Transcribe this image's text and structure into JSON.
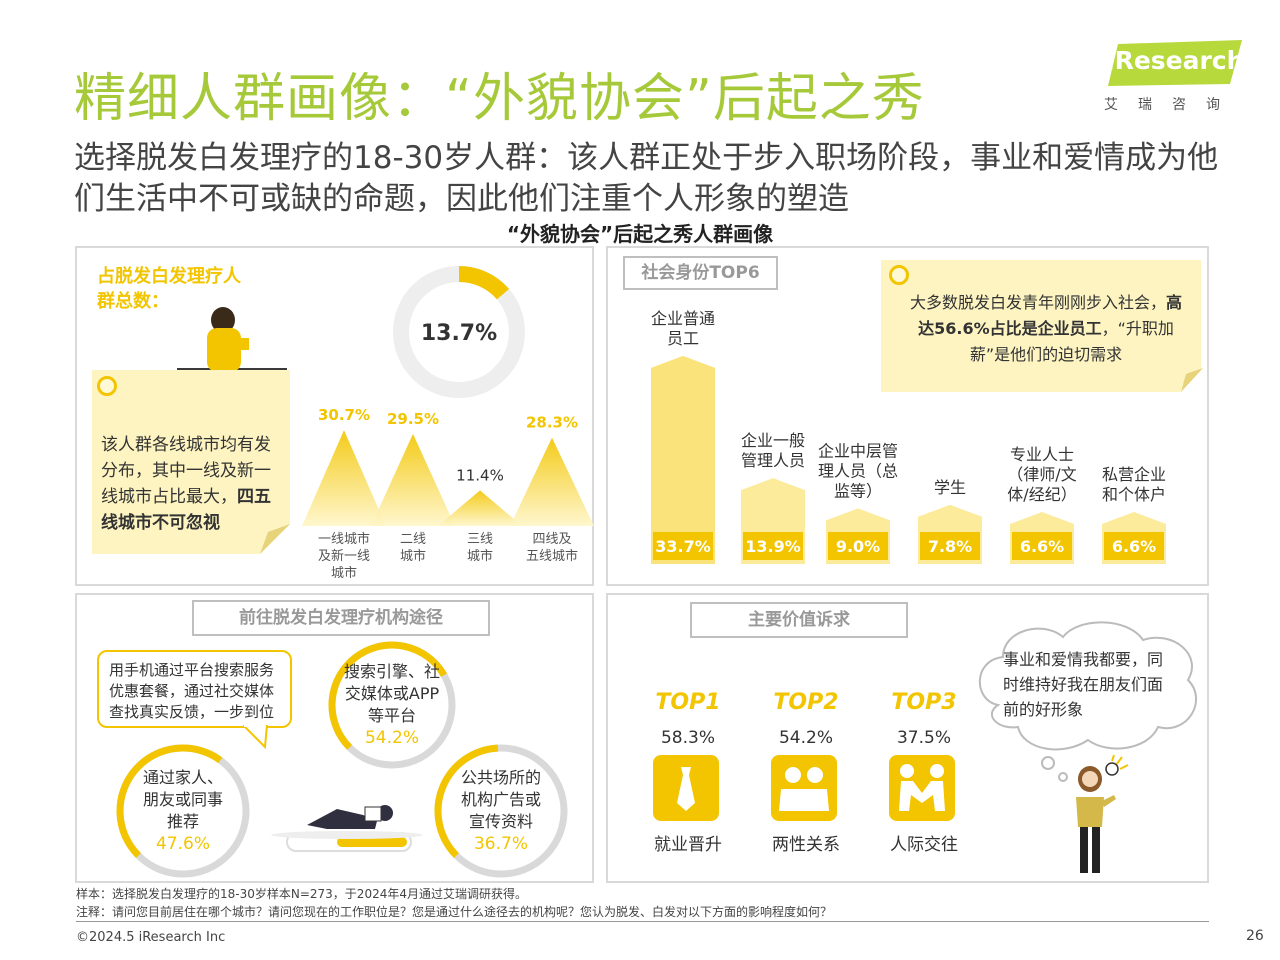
{
  "header": {
    "title": "精细人群画像：“外貌协会”后起之秀",
    "subtitle": "选择脱发白发理疗的18-30岁人群：该人群正处于步入职场阶段，事业和爱情成为他们生活中不可或缺的命题，因此他们注重个人形象的塑造",
    "section_title": "“外貌协会”后起之秀人群画像"
  },
  "logo": {
    "brand": "iResearch",
    "cn": "艾瑞咨询"
  },
  "panel_city": {
    "label": "占脱发白发理疗人群总数：",
    "donut_value": "13.7%",
    "note_plain": "该人群各线城市均有发分布，其中一线及新一线城市占比最大，",
    "note_bold": "四五线城市不可忽视"
  },
  "panel_identity": {
    "tag": "社会身份TOP6",
    "note_plain1": "大多数脱发白发青年刚刚步入社会，",
    "note_bold": "高达56.6%占比是企业员工",
    "note_plain2": "，“升职加薪”是他们的迫切需求"
  },
  "panel_channel": {
    "tag": "前往脱发白发理疗机构途径",
    "speech": "用手机通过平台搜索服务优惠套餐，通过社交媒体查找真实反馈，一步到位",
    "items": [
      {
        "label": "搜索引擎、社交媒体或APP等平台",
        "pct": "54.2%",
        "value": 54.2
      },
      {
        "label": "通过家人、朋友或同事推荐",
        "pct": "47.6%",
        "value": 47.6
      },
      {
        "label": "公共场所的机构广告或宣传资料",
        "pct": "36.7%",
        "value": 36.7
      }
    ]
  },
  "panel_value": {
    "tag": "主要价值诉求",
    "thought": "事业和爱情我都要，同时维持好我在朋友们面前的好形象",
    "tops": [
      {
        "rank": "TOP1",
        "pct": "58.3%",
        "name": "就业晋升",
        "icon": "tie-icon"
      },
      {
        "rank": "TOP2",
        "pct": "54.2%",
        "name": "两性关系",
        "icon": "couple-icon"
      },
      {
        "rank": "TOP3",
        "pct": "37.5%",
        "name": "人际交往",
        "icon": "handshake-icon"
      }
    ]
  },
  "chart_data": [
    {
      "type": "pie",
      "categories": [
        ""
      ],
      "values": [
        13.7
      ],
      "labels": [
        "13.7%"
      ]
    },
    {
      "type": "area",
      "categories": [
        "一线城市及新一线城市",
        "二线城市",
        "三线城市",
        "四线及五线城市"
      ],
      "values": [
        30.7,
        29.5,
        11.4,
        28.3
      ],
      "labels": [
        "30.7%",
        "29.5%",
        "11.4%",
        "28.3%"
      ]
    },
    {
      "type": "bar",
      "title": "社会身份TOP6",
      "categories": [
        "企业普通员工",
        "企业一般管理人员",
        "企业中层管理人员（总监等）",
        "学生",
        "专业人士（律师/文体/经纪）",
        "私营企业和个体户"
      ],
      "values": [
        33.7,
        13.9,
        9.0,
        7.8,
        6.6,
        6.6
      ],
      "labels": [
        "33.7%",
        "13.9%",
        "9.0%",
        "7.8%",
        "6.6%",
        "6.6%"
      ]
    }
  ],
  "footer": {
    "sample": "样本：选择脱发白发理疗的18-30岁样本N=273，于2024年4月通过艾瑞调研获得。",
    "note": "注释：请问您目前居住在哪个城市？请问您现在的工作职位是？您是通过什么途径去的机构呢？您认为脱发、白发对以下方面的影响程度如何？",
    "copyright": "©2024.5 iResearch Inc",
    "page": "26"
  },
  "colors": {
    "accent": "#f2c500",
    "title_green": "#a6c93a",
    "pale": "#fde98a",
    "note_bg": "#fdf4c2",
    "border": "#d9d9d9"
  }
}
